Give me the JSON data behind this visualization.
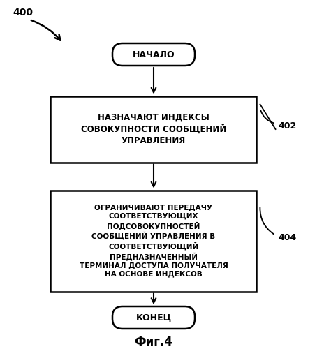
{
  "bg_color": "#ffffff",
  "fig_label": "400",
  "fig_caption": "Фиг.4",
  "start_label": "НАЧАЛО",
  "end_label": "КОНЕЦ",
  "box1_label": "НАЗНАЧАЮТ ИНДЕКСЫ\nСОВОКУПНОСТИ СООБЩЕНИЙ\nУПРАВЛЕНИЯ",
  "box1_tag": "402",
  "box2_label": "ОГРАНИЧИВАЮТ ПЕРЕДАЧУ\nСООТВЕТСТВУЮЩИХ\nПОДСОВОКУПНОСТЕЙ\nСООБЩЕНИЙ УПРАВЛЕНИЯ В\nСООТВЕТСТВУЮЩИЙ\nПРЕДНАЗНАЧЕННЫЙ\nТЕРМИНАЛ ДОСТУПА ПОЛУЧАТЕЛЯ\nНА ОСНОВЕ ИНДЕКСОВ",
  "box2_tag": "404",
  "arrow_color": "#000000",
  "box_color": "#ffffff",
  "box_edge_color": "#000000",
  "text_color": "#000000",
  "font_size_box1": 8.5,
  "font_size_box2": 7.5,
  "font_size_terminal": 9,
  "font_size_caption": 12,
  "font_size_label": 10,
  "font_size_tag": 9
}
